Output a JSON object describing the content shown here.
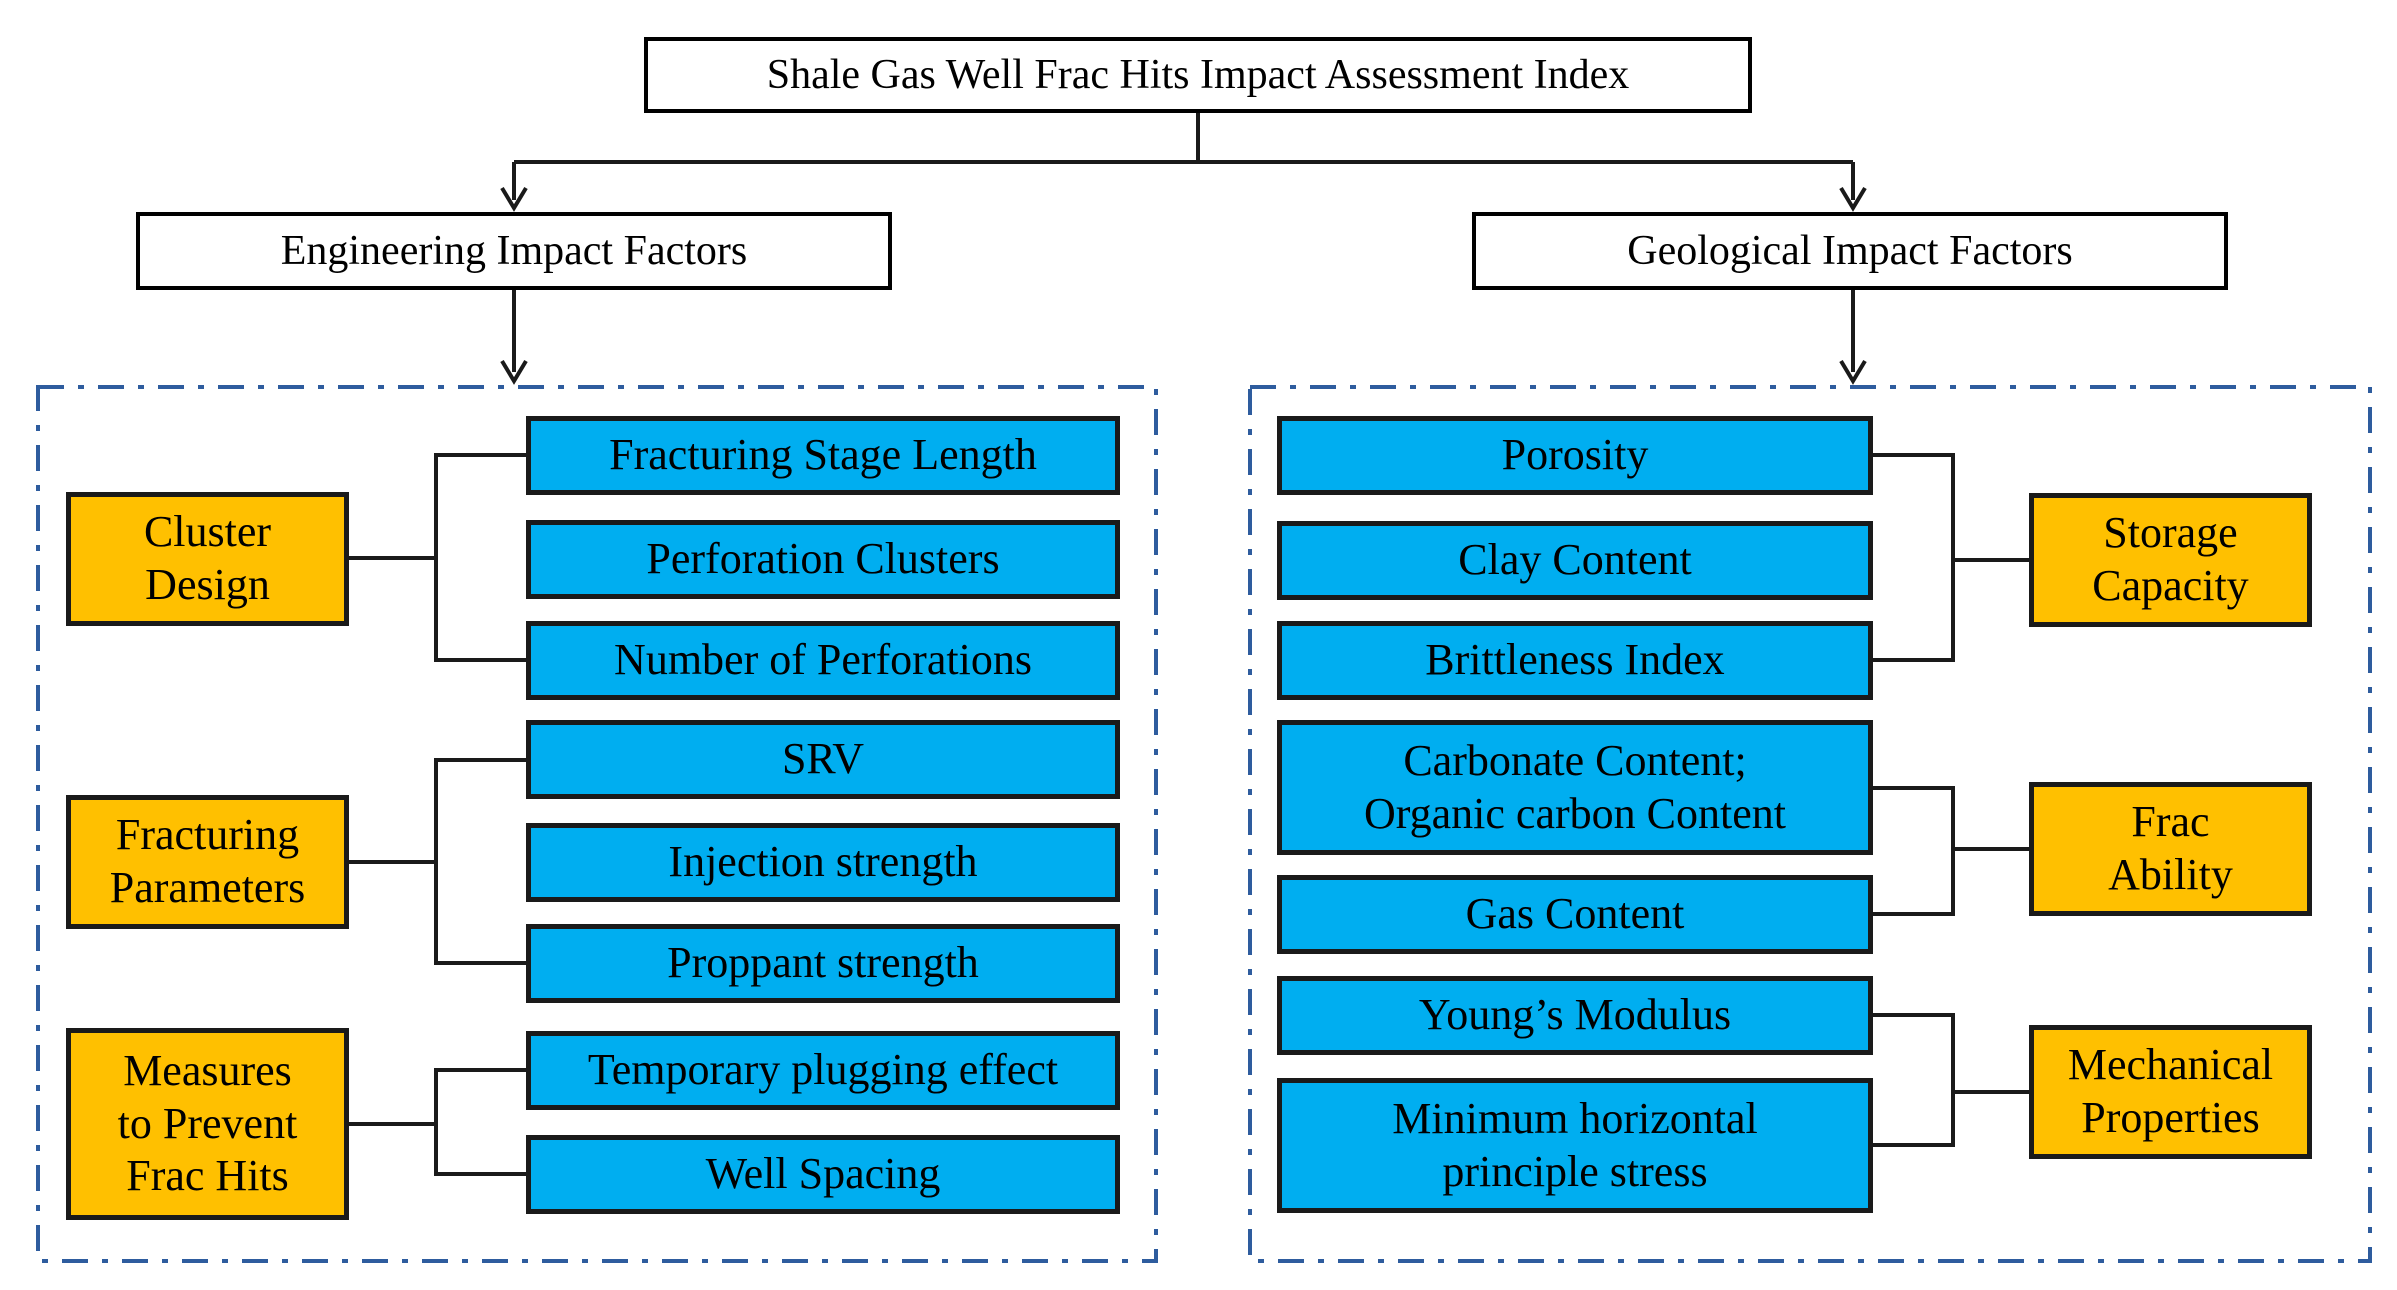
{
  "title": "Shale Gas Well Frac Hits Impact Assessment Index",
  "colors": {
    "item_fill": "#00aef0",
    "category_fill": "#ffc000",
    "frame": "#2e5c9e",
    "line": "#000000"
  },
  "engineering": {
    "heading": "Engineering Impact Factors",
    "categories": [
      {
        "label": "Cluster Design",
        "items": [
          "Fracturing Stage Length",
          "Perforation Clusters",
          "Number of Perforations"
        ]
      },
      {
        "label": "Fracturing Parameters",
        "items": [
          "SRV",
          "Injection strength",
          "Proppant strength"
        ]
      },
      {
        "label": "Measures to Prevent Frac Hits",
        "items": [
          "Temporary plugging effect",
          "Well Spacing"
        ]
      }
    ]
  },
  "geological": {
    "heading": "Geological Impact Factors",
    "categories": [
      {
        "label": "Storage Capacity",
        "items": [
          "Porosity",
          "Clay Content",
          "Brittleness Index"
        ]
      },
      {
        "label": "Frac Ability",
        "items": [
          "Carbonate Content; Organic carbon Content",
          "Gas Content"
        ]
      },
      {
        "label": "Mechanical Properties",
        "items": [
          "Young’s Modulus",
          "Minimum horizontal principle stress"
        ]
      }
    ]
  }
}
